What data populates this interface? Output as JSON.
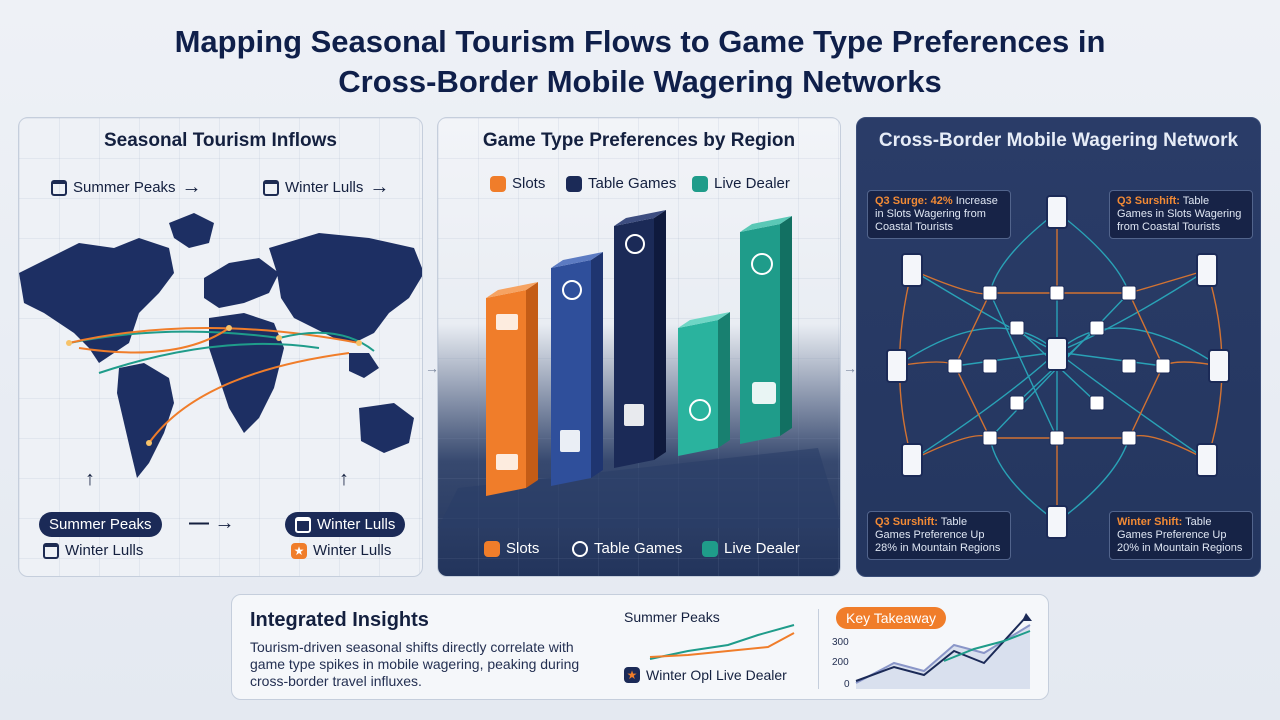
{
  "title_line1": "Mapping Seasonal Tourism Flows to Game Type Preferences in",
  "title_line2": "Cross-Border Mobile Wagering Networks",
  "panel1": {
    "title": "Seasonal Tourism Inflows",
    "top_left": "Summer Peaks",
    "top_right": "Winter Lulls",
    "pill_left": "Summer Peaks",
    "pill_right": "Winter Lulls",
    "bottom_left": "Winter Lulls",
    "bottom_right": "Winter Lulls"
  },
  "panel2": {
    "title": "Game Type Preferences by Region",
    "legend_top": [
      "Slots",
      "Table Games",
      "Live Dealer"
    ],
    "legend_bottom": [
      "Slots",
      "Table Games",
      "Live Dealer"
    ]
  },
  "panel3": {
    "title": "Cross-Border Mobile Wagering Network",
    "note_tl_a": "Q3 Surge: 42%",
    "note_tl_b": " Increase in Slots Wagering from Coastal Tourists",
    "note_tr_a": "Q3 Surshift:",
    "note_tr_b": " Table Games in Slots Wagering from Coastal Tourists",
    "note_bl_a": "Q3 Surshift:",
    "note_bl_b": " Table Games Preference Up 28% in Mountain Regions",
    "note_br_a": "Winter Shift:",
    "note_br_b": " Table Games Preference Up 20% in Mountain Regions"
  },
  "insights": {
    "title": "Integrated Insights",
    "text": "Tourism-driven seasonal shifts directly correlate with game type spikes in mobile wagering, peaking during cross-border travel influxes.",
    "summer_label": "Summer Peaks",
    "winter_label": "Winter Opl Live Dealer",
    "key_takeaway": "Key Takeaway",
    "axis_300": "300",
    "axis_200": "200",
    "axis_0": "0"
  },
  "colors": {
    "navy": "#1b2a57",
    "orange": "#f07d2a",
    "blue": "#2f4f9b",
    "teal": "#1f9c8a"
  }
}
